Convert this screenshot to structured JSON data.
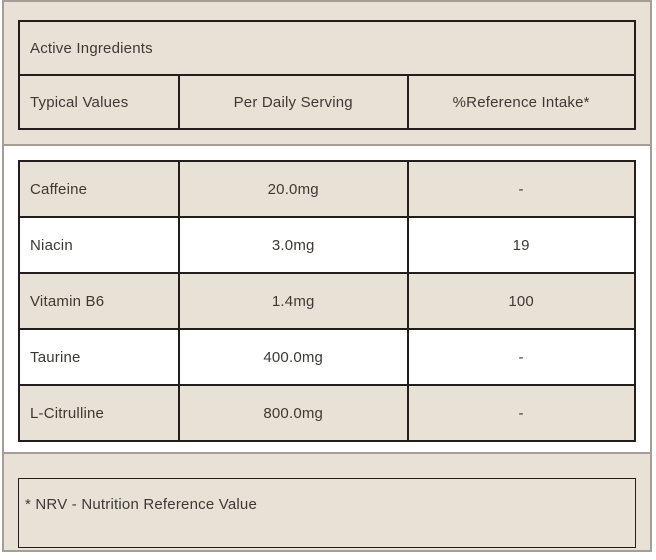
{
  "header": {
    "title": "Active Ingredients",
    "columns": [
      "Typical Values",
      "Per Daily Serving",
      "%Reference Intake*"
    ]
  },
  "rows": [
    {
      "name": "Caffeine",
      "per_daily_serving": "20.0mg",
      "reference_intake": "-"
    },
    {
      "name": "Niacin",
      "per_daily_serving": "3.0mg",
      "reference_intake": "19"
    },
    {
      "name": "Vitamin B6",
      "per_daily_serving": "1.4mg",
      "reference_intake": "100"
    },
    {
      "name": "Taurine",
      "per_daily_serving": "400.0mg",
      "reference_intake": "-"
    },
    {
      "name": "L-Citrulline",
      "per_daily_serving": "800.0mg",
      "reference_intake": "-"
    }
  ],
  "footnote": "* NRV - Nutrition Reference Value",
  "colors": {
    "background_beige": "#e8e1d5",
    "row_white": "#ffffff",
    "table_border_dark": "#211e1b",
    "outer_border_gray": "#a49e96",
    "text": "#3d3935"
  }
}
